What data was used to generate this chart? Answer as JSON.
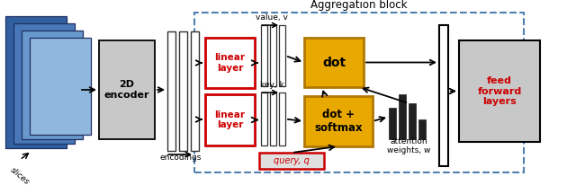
{
  "fig_width": 6.4,
  "fig_height": 2.06,
  "dpi": 100,
  "colors": {
    "linear_box_edge": "#cc0000",
    "dot_box_fill": "#e8a800",
    "dot_box_edge": "#b07800",
    "encoder_fill": "#c8c8c8",
    "ff_fill": "#c8c8c8",
    "query_fill": "#e0e0e0",
    "slice_colors": [
      "#3060a0",
      "#4878b8",
      "#6898cc",
      "#90b8de"
    ],
    "slice_edge": "#203060",
    "arrow_color": "black",
    "dashed_box_edge": "#5080b0",
    "red_text": "#cc0000",
    "bar_color": "#202020",
    "encoding_col_fill": "white",
    "encoding_col_edge": "#333333"
  },
  "title_text": "Aggregation block",
  "slices_label": "slices",
  "encoder_text": "2D\nencoder",
  "encodings_label": "encodings",
  "linear_text": "linear\nlayer",
  "dot_text": "dot",
  "dot_softmax_text": "dot +\nsoftmax",
  "query_text": "query, q",
  "value_label": "value, v",
  "key_label": "key, k",
  "attention_label": "attention\nweights, w",
  "ff_text": "feed\nforward\nlayers"
}
